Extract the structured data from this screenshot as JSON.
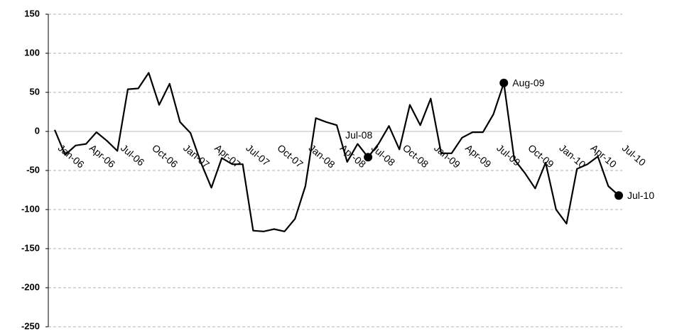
{
  "chart_data": {
    "type": "line",
    "categories": [
      "Jan-06",
      null,
      null,
      "Apr-06",
      null,
      null,
      "Jul-06",
      null,
      null,
      "Oct-06",
      null,
      null,
      "Jan-07",
      null,
      null,
      "Apr-07",
      null,
      null,
      "Jul-07",
      null,
      null,
      "Oct-07",
      null,
      null,
      "Jan-08",
      null,
      null,
      "Apr-08",
      null,
      null,
      "Jul-08",
      null,
      null,
      "Oct-08",
      null,
      null,
      "Jan-09",
      null,
      null,
      "Apr-09",
      null,
      null,
      "Jul-09",
      null,
      null,
      "Oct-09",
      null,
      null,
      "Jan-10",
      null,
      null,
      "Apr-10",
      null,
      null,
      "Jul-10"
    ],
    "series": [
      {
        "name": null,
        "color": "#000000",
        "values": [
          2,
          -30,
          -18,
          -16,
          -1,
          -12,
          -25,
          54,
          55,
          75,
          34,
          61,
          12,
          -2,
          -40,
          -72,
          -34,
          -42,
          -42,
          -127,
          -128,
          -125,
          -128,
          -112,
          -70,
          17,
          12,
          8,
          -39,
          -16,
          -33,
          -16,
          7,
          -23,
          34,
          8,
          42,
          -28,
          -28,
          -8,
          -1,
          -1,
          22,
          62,
          -36,
          -53,
          -73,
          -40,
          -100,
          -118,
          -48,
          -42,
          -32,
          -70,
          -82
        ],
        "value_labels": [
          null,
          null,
          null,
          null,
          null,
          null,
          null,
          null,
          null,
          null,
          null,
          null,
          null,
          null,
          null,
          null,
          null,
          null,
          null,
          null,
          null,
          null,
          null,
          null,
          null,
          null,
          null,
          null,
          null,
          null,
          "Jul-08",
          null,
          null,
          null,
          null,
          null,
          null,
          null,
          null,
          null,
          null,
          null,
          null,
          "Aug-09",
          null,
          null,
          null,
          null,
          null,
          null,
          null,
          null,
          null,
          null,
          "Jul-10"
        ]
      }
    ],
    "ylim": [
      -250,
      150
    ],
    "yticks": [
      -250,
      -200,
      -150,
      -100,
      -50,
      0,
      50,
      100,
      150
    ],
    "grid": true
  }
}
